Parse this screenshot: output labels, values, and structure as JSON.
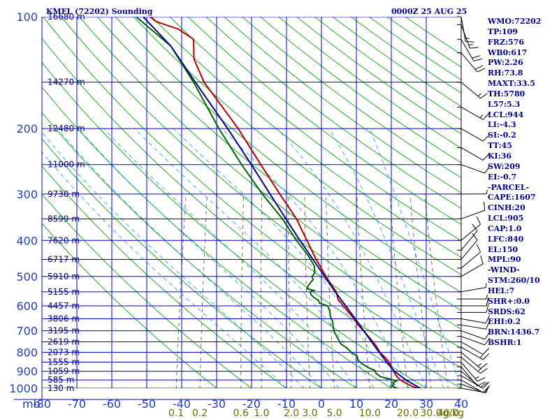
{
  "header": {
    "station": "KMFL (72202) Sounding",
    "time": "0000Z 25 AUG 25"
  },
  "chart_data": {
    "type": "line",
    "title": "KMFL (72202) Sounding",
    "subtitle": "0000Z 25 AUG 25",
    "xlim": [
      -80,
      40
    ],
    "ylim": [
      1000,
      100
    ],
    "y_scale": "log",
    "pressure_ticks": [
      "100",
      "200",
      "300",
      "400",
      "500",
      "600",
      "700",
      "800",
      "900",
      "1000"
    ],
    "pressure_unit": "mb",
    "temp_ticks": [
      "-80",
      "-70",
      "-60",
      "-50",
      "-40",
      "-30",
      "-20",
      "-10",
      "0",
      "10",
      "20",
      "30",
      "40"
    ],
    "mixing_ratio_labels": [
      "0.1",
      "0.2",
      "0.6",
      "1.0",
      "2.0",
      "3.0",
      "5.0",
      "10.0",
      "20.0",
      "30.0",
      "40.0"
    ],
    "mixing_ratio_values": [
      0.1,
      0.2,
      0.6,
      1.0,
      2.0,
      3.0,
      5.0,
      10.0,
      20.0,
      30.0,
      40.0
    ],
    "mixing_ratio_unit": "g/kg",
    "heights": [
      {
        "p": 100,
        "label": "16680 m"
      },
      {
        "p": 150,
        "label": "14270 m"
      },
      {
        "p": 200,
        "label": "12480 m"
      },
      {
        "p": 250,
        "label": "11000 m"
      },
      {
        "p": 300,
        "label": "9730 m"
      },
      {
        "p": 350,
        "label": "8599 m"
      },
      {
        "p": 400,
        "label": "7620 m"
      },
      {
        "p": 450,
        "label": "6717 m"
      },
      {
        "p": 500,
        "label": "5910 m"
      },
      {
        "p": 550,
        "label": "5155 m"
      },
      {
        "p": 600,
        "label": "4457 m"
      },
      {
        "p": 650,
        "label": "3806 m"
      },
      {
        "p": 700,
        "label": "3195 m"
      },
      {
        "p": 750,
        "label": "2619 m"
      },
      {
        "p": 800,
        "label": "2073 m"
      },
      {
        "p": 850,
        "label": "1555 m"
      },
      {
        "p": 900,
        "label": "1059 m"
      },
      {
        "p": 950,
        "label": "585 m"
      },
      {
        "p": 1000,
        "label": "130 m"
      }
    ],
    "series": [
      {
        "color": "#b40000",
        "points": [
          [
            1008,
            29.0
          ],
          [
            990,
            26.0
          ],
          [
            970,
            24.0
          ],
          [
            950,
            22.0
          ],
          [
            925,
            20.5
          ],
          [
            900,
            19.5
          ],
          [
            875,
            18.5
          ],
          [
            850,
            17.5
          ],
          [
            825,
            16.0
          ],
          [
            800,
            14.2
          ],
          [
            775,
            13.0
          ],
          [
            750,
            11.5
          ],
          [
            725,
            9.8
          ],
          [
            700,
            8.0
          ],
          [
            675,
            6.0
          ],
          [
            650,
            4.5
          ],
          [
            625,
            2.5
          ],
          [
            600,
            0.5
          ],
          [
            575,
            -1.5
          ],
          [
            550,
            -2.5
          ],
          [
            525,
            -4.5
          ],
          [
            500,
            -6.5
          ],
          [
            450,
            -10.5
          ],
          [
            400,
            -14.5
          ],
          [
            350,
            -19.0
          ],
          [
            300,
            -25.5
          ],
          [
            250,
            -33.0
          ],
          [
            200,
            -42.0
          ],
          [
            175,
            -48.0
          ],
          [
            150,
            -55.0
          ],
          [
            130,
            -59.5
          ],
          [
            115,
            -61.0
          ],
          [
            108,
            -66.0
          ],
          [
            103,
            -73.0
          ],
          [
            100,
            -75.0
          ]
        ]
      },
      {
        "color": "#006400",
        "points": [
          [
            1008,
            23.0
          ],
          [
            995,
            21.0
          ],
          [
            985,
            20.0
          ],
          [
            975,
            20.5
          ],
          [
            965,
            20.0
          ],
          [
            955,
            21.0
          ],
          [
            945,
            19.0
          ],
          [
            930,
            16.0
          ],
          [
            910,
            14.5
          ],
          [
            895,
            14.0
          ],
          [
            880,
            12.0
          ],
          [
            860,
            10.0
          ],
          [
            840,
            8.5
          ],
          [
            820,
            8.0
          ],
          [
            800,
            6.0
          ],
          [
            780,
            4.5
          ],
          [
            760,
            2.5
          ],
          [
            740,
            1.5
          ],
          [
            720,
            0.5
          ],
          [
            700,
            -0.5
          ],
          [
            680,
            -1.0
          ],
          [
            660,
            -1.5
          ],
          [
            640,
            -2.5
          ],
          [
            620,
            -3.0
          ],
          [
            600,
            -4.0
          ],
          [
            590,
            -6.5
          ],
          [
            580,
            -7.0
          ],
          [
            570,
            -8.5
          ],
          [
            560,
            -9.5
          ],
          [
            550,
            -10.0
          ],
          [
            545,
            -9.0
          ],
          [
            540,
            -11.0
          ],
          [
            530,
            -11.0
          ],
          [
            520,
            -10.5
          ],
          [
            510,
            -10.0
          ],
          [
            500,
            -10.5
          ],
          [
            490,
            -10.0
          ],
          [
            470,
            -10.5
          ],
          [
            440,
            -13.0
          ],
          [
            400,
            -17.5
          ],
          [
            350,
            -23.0
          ],
          [
            300,
            -30.5
          ],
          [
            250,
            -38.5
          ],
          [
            200,
            -47.5
          ],
          [
            150,
            -58.0
          ],
          [
            120,
            -67.0
          ],
          [
            100,
            -79.0
          ]
        ]
      },
      {
        "color": "#00008b",
        "points": [
          [
            1008,
            29.0
          ],
          [
            950,
            23.6
          ],
          [
            900,
            19.7
          ],
          [
            850,
            16.8
          ],
          [
            800,
            14.0
          ],
          [
            750,
            11.1
          ],
          [
            700,
            8.1
          ],
          [
            650,
            4.8
          ],
          [
            600,
            1.2
          ],
          [
            550,
            -2.8
          ],
          [
            500,
            -6.9
          ],
          [
            450,
            -11.4
          ],
          [
            400,
            -16.5
          ],
          [
            350,
            -22.0
          ],
          [
            300,
            -28.3
          ],
          [
            250,
            -35.7
          ],
          [
            200,
            -45.0
          ],
          [
            150,
            -57.5
          ],
          [
            120,
            -67.0
          ],
          [
            100,
            -77.0
          ]
        ]
      }
    ],
    "wind_barbs": [
      {
        "p": 1000,
        "dir": 100,
        "spd": 5
      },
      {
        "p": 975,
        "dir": 110,
        "spd": 10
      },
      {
        "p": 950,
        "dir": 120,
        "spd": 10
      },
      {
        "p": 925,
        "dir": 120,
        "spd": 10
      },
      {
        "p": 900,
        "dir": 130,
        "spd": 10
      },
      {
        "p": 875,
        "dir": 140,
        "spd": 10
      },
      {
        "p": 850,
        "dir": 140,
        "spd": 15
      },
      {
        "p": 825,
        "dir": 130,
        "spd": 15
      },
      {
        "p": 800,
        "dir": 130,
        "spd": 15
      },
      {
        "p": 775,
        "dir": 120,
        "spd": 15
      },
      {
        "p": 750,
        "dir": 120,
        "spd": 10
      },
      {
        "p": 725,
        "dir": 110,
        "spd": 10
      },
      {
        "p": 700,
        "dir": 110,
        "spd": 10
      },
      {
        "p": 675,
        "dir": 100,
        "spd": 10
      },
      {
        "p": 650,
        "dir": 100,
        "spd": 10
      },
      {
        "p": 625,
        "dir": 90,
        "spd": 10
      },
      {
        "p": 600,
        "dir": 90,
        "spd": 10
      },
      {
        "p": 575,
        "dir": 90,
        "spd": 5
      },
      {
        "p": 550,
        "dir": 80,
        "spd": 5
      },
      {
        "p": 500,
        "dir": 60,
        "spd": 10
      },
      {
        "p": 475,
        "dir": 50,
        "spd": 10
      },
      {
        "p": 450,
        "dir": 40,
        "spd": 10
      },
      {
        "p": 425,
        "dir": 40,
        "spd": 10
      },
      {
        "p": 400,
        "dir": 50,
        "spd": 10
      },
      {
        "p": 350,
        "dir": 70,
        "spd": 10
      },
      {
        "p": 300,
        "dir": 90,
        "spd": 5
      },
      {
        "p": 250,
        "dir": 110,
        "spd": 10
      },
      {
        "p": 225,
        "dir": 120,
        "spd": 10
      },
      {
        "p": 200,
        "dir": 120,
        "spd": 10
      },
      {
        "p": 175,
        "dir": 120,
        "spd": 15
      },
      {
        "p": 150,
        "dir": 130,
        "spd": 15
      },
      {
        "p": 125,
        "dir": 140,
        "spd": 20
      },
      {
        "p": 115,
        "dir": 150,
        "spd": 20
      },
      {
        "p": 105,
        "dir": 160,
        "spd": 15
      },
      {
        "p": 100,
        "dir": 170,
        "spd": 15
      }
    ]
  },
  "indices": [
    "WMO:72202",
    "TP:109",
    "FRZ:576",
    "WB0:617",
    "PW:2.26",
    "RH:73.8",
    "MAXT:33.5",
    "TH:5780",
    "L57:5.3",
    "LCL:944",
    "LI:-4.3",
    "SI:-0.2",
    "TT:45",
    "KI:36",
    "SW:209",
    "EI:-0.7",
    "-PARCEL-",
    "CAPE:1607",
    "CINH:20",
    "LCL:905",
    "CAP:1.0",
    "LFC:840",
    "EL:150",
    "MPL:90",
    "-WIND-",
    "STM:260/10",
    "HEL:7",
    "SHR+:0.0",
    "SRDS:62",
    "EHI:0.2",
    "BRN:1436.7",
    "BSHR:1"
  ],
  "colors": {
    "isotherm": "#0000cd",
    "isobar": "#0000cd",
    "dry_adiabat": "#22aa22",
    "moist_adiabat": "#1e90ff",
    "mixing_ratio": "#556b2f",
    "temperature": "#b40000",
    "dewpoint": "#006400",
    "parcel": "#00008b",
    "text": "#00008b"
  }
}
